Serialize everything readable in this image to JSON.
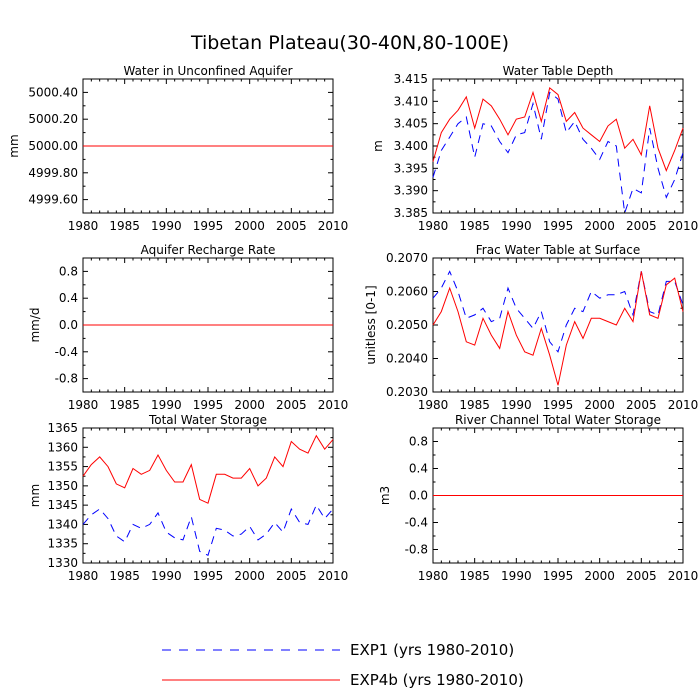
{
  "title": "Tibetan Plateau(30-40N,80-100E)",
  "legend": {
    "placement": "bottom-center",
    "items": [
      {
        "label": "EXP1 (yrs 1980-2010)",
        "color": "#0000ff",
        "style": "dashed"
      },
      {
        "label": "EXP4b (yrs 1980-2010)",
        "color": "#ff0000",
        "style": "solid"
      }
    ]
  },
  "chart_data": [
    {
      "type": "line",
      "title": "Water in Unconfined Aquifer",
      "xlabel": "",
      "ylabel": "mm",
      "xlim": [
        1980,
        2010
      ],
      "ylim": [
        4999.5,
        5000.5
      ],
      "xticks": [
        "1980",
        "1985",
        "1990",
        "1995",
        "2000",
        "2005",
        "2010"
      ],
      "yticks": [
        "4999.60",
        "4999.80",
        "5000.00",
        "5000.20",
        "5000.40"
      ],
      "x": [
        1980,
        1981,
        1982,
        1983,
        1984,
        1985,
        1986,
        1987,
        1988,
        1989,
        1990,
        1991,
        1992,
        1993,
        1994,
        1995,
        1996,
        1997,
        1998,
        1999,
        2000,
        2001,
        2002,
        2003,
        2004,
        2005,
        2006,
        2007,
        2008,
        2009,
        2010
      ],
      "series": [
        {
          "name": "EXP1 (yrs 1980-2010)",
          "values": [
            5000,
            5000,
            5000,
            5000,
            5000,
            5000,
            5000,
            5000,
            5000,
            5000,
            5000,
            5000,
            5000,
            5000,
            5000,
            5000,
            5000,
            5000,
            5000,
            5000,
            5000,
            5000,
            5000,
            5000,
            5000,
            5000,
            5000,
            5000,
            5000,
            5000,
            5000
          ]
        },
        {
          "name": "EXP4b (yrs 1980-2010)",
          "values": [
            5000,
            5000,
            5000,
            5000,
            5000,
            5000,
            5000,
            5000,
            5000,
            5000,
            5000,
            5000,
            5000,
            5000,
            5000,
            5000,
            5000,
            5000,
            5000,
            5000,
            5000,
            5000,
            5000,
            5000,
            5000,
            5000,
            5000,
            5000,
            5000,
            5000,
            5000
          ]
        }
      ]
    },
    {
      "type": "line",
      "title": "Water Table Depth",
      "xlabel": "",
      "ylabel": "m",
      "xlim": [
        1980,
        2010
      ],
      "ylim": [
        3.385,
        3.415
      ],
      "xticks": [
        "1980",
        "1985",
        "1990",
        "1995",
        "2000",
        "2005",
        "2010"
      ],
      "yticks": [
        "3.385",
        "3.390",
        "3.395",
        "3.400",
        "3.405",
        "3.410",
        "3.415"
      ],
      "x": [
        1980,
        1981,
        1982,
        1983,
        1984,
        1985,
        1986,
        1987,
        1988,
        1989,
        1990,
        1991,
        1992,
        1993,
        1994,
        1995,
        1996,
        1997,
        1998,
        1999,
        2000,
        2001,
        2002,
        2003,
        2004,
        2005,
        2006,
        2007,
        2008,
        2009,
        2010
      ],
      "series": [
        {
          "name": "EXP1 (yrs 1980-2010)",
          "values": [
            3.393,
            3.399,
            3.402,
            3.405,
            3.4065,
            3.3975,
            3.405,
            3.4045,
            3.401,
            3.3985,
            3.4025,
            3.403,
            3.4095,
            3.4015,
            3.412,
            3.4105,
            3.403,
            3.4055,
            3.4015,
            3.3995,
            3.397,
            3.401,
            3.4,
            3.385,
            3.3905,
            3.3895,
            3.404,
            3.395,
            3.3885,
            3.3925,
            3.3985
          ]
        },
        {
          "name": "EXP4b (yrs 1980-2010)",
          "values": [
            3.3965,
            3.403,
            3.406,
            3.408,
            3.411,
            3.404,
            3.4105,
            3.409,
            3.406,
            3.4025,
            3.406,
            3.4065,
            3.412,
            3.4055,
            3.413,
            3.4115,
            3.4055,
            3.4075,
            3.404,
            3.4025,
            3.401,
            3.4045,
            3.406,
            3.3995,
            3.4015,
            3.398,
            3.409,
            3.3995,
            3.3945,
            3.399,
            3.404
          ]
        }
      ]
    },
    {
      "type": "line",
      "title": "Aquifer Recharge Rate",
      "xlabel": "",
      "ylabel": "mm/d",
      "xlim": [
        1980,
        2010
      ],
      "ylim": [
        -1.0,
        1.0
      ],
      "xticks": [
        "1980",
        "1985",
        "1990",
        "1995",
        "2000",
        "2005",
        "2010"
      ],
      "yticks": [
        "-0.8",
        "-0.4",
        "0.0",
        "0.4",
        "0.8"
      ],
      "x": [
        1980,
        1981,
        1982,
        1983,
        1984,
        1985,
        1986,
        1987,
        1988,
        1989,
        1990,
        1991,
        1992,
        1993,
        1994,
        1995,
        1996,
        1997,
        1998,
        1999,
        2000,
        2001,
        2002,
        2003,
        2004,
        2005,
        2006,
        2007,
        2008,
        2009,
        2010
      ],
      "series": [
        {
          "name": "EXP1 (yrs 1980-2010)",
          "values": [
            0,
            0,
            0,
            0,
            0,
            0,
            0,
            0,
            0,
            0,
            0,
            0,
            0,
            0,
            0,
            0,
            0,
            0,
            0,
            0,
            0,
            0,
            0,
            0,
            0,
            0,
            0,
            0,
            0,
            0,
            0
          ]
        },
        {
          "name": "EXP4b (yrs 1980-2010)",
          "values": [
            0,
            0,
            0,
            0,
            0,
            0,
            0,
            0,
            0,
            0,
            0,
            0,
            0,
            0,
            0,
            0,
            0,
            0,
            0,
            0,
            0,
            0,
            0,
            0,
            0,
            0,
            0,
            0,
            0,
            0,
            0
          ]
        }
      ]
    },
    {
      "type": "line",
      "title": "Frac Water Table at Surface",
      "xlabel": "",
      "ylabel": "unitless [0-1]",
      "xlim": [
        1980,
        2010
      ],
      "ylim": [
        0.203,
        0.207
      ],
      "xticks": [
        "1980",
        "1985",
        "1990",
        "1995",
        "2000",
        "2005",
        "2010"
      ],
      "yticks": [
        "0.2030",
        "0.2040",
        "0.2050",
        "0.2060",
        "0.2070"
      ],
      "x": [
        1980,
        1981,
        1982,
        1983,
        1984,
        1985,
        1986,
        1987,
        1988,
        1989,
        1990,
        1991,
        1992,
        1993,
        1994,
        1995,
        1996,
        1997,
        1998,
        1999,
        2000,
        2001,
        2002,
        2003,
        2004,
        2005,
        2006,
        2007,
        2008,
        2009,
        2010
      ],
      "series": [
        {
          "name": "EXP1 (yrs 1980-2010)",
          "values": [
            0.2058,
            0.2061,
            0.2066,
            0.206,
            0.2052,
            0.2053,
            0.2055,
            0.2051,
            0.2052,
            0.2061,
            0.2055,
            0.2052,
            0.2049,
            0.2054,
            0.2045,
            0.2042,
            0.205,
            0.2055,
            0.2054,
            0.206,
            0.2058,
            0.2059,
            0.2059,
            0.206,
            0.2053,
            0.2066,
            0.2054,
            0.2053,
            0.2063,
            0.2063,
            0.2056
          ]
        },
        {
          "name": "EXP4b (yrs 1980-2010)",
          "values": [
            0.205,
            0.2054,
            0.2061,
            0.2054,
            0.2045,
            0.2044,
            0.2052,
            0.2047,
            0.2043,
            0.2054,
            0.2047,
            0.2042,
            0.2041,
            0.2049,
            0.2041,
            0.2032,
            0.2044,
            0.2051,
            0.2046,
            0.2052,
            0.2052,
            0.2051,
            0.205,
            0.2055,
            0.2051,
            0.2066,
            0.2053,
            0.2052,
            0.2062,
            0.2064,
            0.2054
          ]
        }
      ]
    },
    {
      "type": "line",
      "title": "Total Water Storage",
      "xlabel": "",
      "ylabel": "mm",
      "xlim": [
        1980,
        2010
      ],
      "ylim": [
        1330,
        1365
      ],
      "xticks": [
        "1980",
        "1985",
        "1990",
        "1995",
        "2000",
        "2005",
        "2010"
      ],
      "yticks": [
        "1330",
        "1335",
        "1340",
        "1345",
        "1350",
        "1355",
        "1360",
        "1365"
      ],
      "x": [
        1980,
        1981,
        1982,
        1983,
        1984,
        1985,
        1986,
        1987,
        1988,
        1989,
        1990,
        1991,
        1992,
        1993,
        1994,
        1995,
        1996,
        1997,
        1998,
        1999,
        2000,
        2001,
        2002,
        2003,
        2004,
        2005,
        2006,
        2007,
        2008,
        2009,
        2010
      ],
      "series": [
        {
          "name": "EXP1 (yrs 1980-2010)",
          "values": [
            1340,
            1342.5,
            1344,
            1341.5,
            1337,
            1335.5,
            1340,
            1339,
            1340,
            1343,
            1338,
            1336.5,
            1336,
            1342,
            1333,
            1332,
            1339,
            1338.5,
            1337,
            1337.5,
            1339.5,
            1336,
            1337.5,
            1340.5,
            1338,
            1344,
            1340.5,
            1340,
            1345,
            1341.5,
            1344
          ]
        },
        {
          "name": "EXP4b (yrs 1980-2010)",
          "values": [
            1352.5,
            1355.5,
            1357.5,
            1355,
            1350.5,
            1349.5,
            1354.5,
            1353,
            1354,
            1358,
            1354,
            1351,
            1351,
            1355.5,
            1346.5,
            1345.5,
            1353,
            1353,
            1352,
            1352,
            1354.5,
            1350,
            1352,
            1357.5,
            1355,
            1361.5,
            1359.5,
            1358.5,
            1363,
            1359.5,
            1362
          ]
        }
      ]
    },
    {
      "type": "line",
      "title": "River Channel Total Water Storage",
      "xlabel": "",
      "ylabel": "m3",
      "xlim": [
        1980,
        2010
      ],
      "ylim": [
        -1.0,
        1.0
      ],
      "xticks": [
        "1980",
        "1985",
        "1990",
        "1995",
        "2000",
        "2005",
        "2010"
      ],
      "yticks": [
        "-0.8",
        "-0.4",
        "0.0",
        "0.4",
        "0.8"
      ],
      "x": [
        1980,
        1981,
        1982,
        1983,
        1984,
        1985,
        1986,
        1987,
        1988,
        1989,
        1990,
        1991,
        1992,
        1993,
        1994,
        1995,
        1996,
        1997,
        1998,
        1999,
        2000,
        2001,
        2002,
        2003,
        2004,
        2005,
        2006,
        2007,
        2008,
        2009,
        2010
      ],
      "series": [
        {
          "name": "EXP1 (yrs 1980-2010)",
          "values": [
            0,
            0,
            0,
            0,
            0,
            0,
            0,
            0,
            0,
            0,
            0,
            0,
            0,
            0,
            0,
            0,
            0,
            0,
            0,
            0,
            0,
            0,
            0,
            0,
            0,
            0,
            0,
            0,
            0,
            0,
            0
          ]
        },
        {
          "name": "EXP4b (yrs 1980-2010)",
          "values": [
            0,
            0,
            0,
            0,
            0,
            0,
            0,
            0,
            0,
            0,
            0,
            0,
            0,
            0,
            0,
            0,
            0,
            0,
            0,
            0,
            0,
            0,
            0,
            0,
            0,
            0,
            0,
            0,
            0,
            0,
            0
          ]
        }
      ]
    }
  ]
}
